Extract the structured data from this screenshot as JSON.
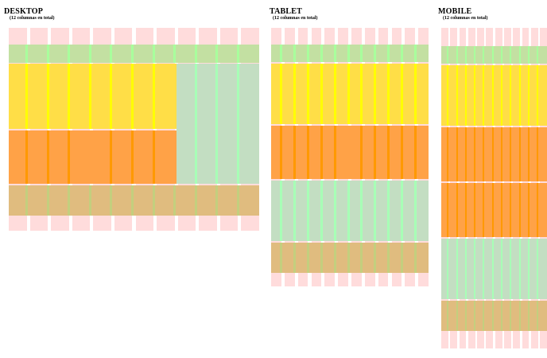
{
  "colors": {
    "column": "#ffdcdc",
    "header": "#c3e0a2",
    "hero": "#ffde47",
    "feature": "#ffa247",
    "sidebar": "#c3dec2",
    "footer": "#e0bc7f",
    "stripe_header": "#a8ff9c",
    "stripe_hero": "#ffff00",
    "stripe_feature": "#ff9900",
    "stripe_sidebar": "#a7ffb6",
    "stripe_footer": "#c3cf7e"
  },
  "layouts": [
    {
      "id": "desktop",
      "title": "DESKTOP",
      "subtitle": "(12 columnas en total)",
      "columns": 12,
      "blocks": [
        {
          "name": "header",
          "color": "header",
          "stripe": "stripe_header",
          "col_start": 1,
          "col_span": 12
        },
        {
          "name": "hero",
          "color": "hero",
          "stripe": "stripe_hero",
          "col_start": 1,
          "col_span": 8
        },
        {
          "name": "sidebar",
          "color": "sidebar",
          "stripe": "stripe_sidebar",
          "col_start": 9,
          "col_span": 4
        },
        {
          "name": "feature-1",
          "color": "feature",
          "stripe": "stripe_feature",
          "col_start": 1,
          "col_span": 4
        },
        {
          "name": "feature-2",
          "color": "feature",
          "stripe": "stripe_feature",
          "col_start": 5,
          "col_span": 4
        },
        {
          "name": "footer",
          "color": "footer",
          "stripe": "stripe_footer",
          "col_start": 1,
          "col_span": 12
        }
      ]
    },
    {
      "id": "tablet",
      "title": "TABLET",
      "subtitle": "(12 columnas en total)",
      "columns": 12,
      "blocks": [
        {
          "name": "header",
          "color": "header",
          "stripe": "stripe_header",
          "col_start": 1,
          "col_span": 12
        },
        {
          "name": "hero",
          "color": "hero",
          "stripe": "stripe_hero",
          "col_start": 1,
          "col_span": 12
        },
        {
          "name": "feature-1",
          "color": "feature",
          "stripe": "stripe_feature",
          "col_start": 1,
          "col_span": 6
        },
        {
          "name": "feature-2",
          "color": "feature",
          "stripe": "stripe_feature",
          "col_start": 7,
          "col_span": 6
        },
        {
          "name": "sidebar",
          "color": "sidebar",
          "stripe": "stripe_sidebar",
          "col_start": 1,
          "col_span": 12
        },
        {
          "name": "footer",
          "color": "footer",
          "stripe": "stripe_footer",
          "col_start": 1,
          "col_span": 12
        }
      ]
    },
    {
      "id": "mobile",
      "title": "MOBILE",
      "subtitle": "(12 columnas en total)",
      "columns": 12,
      "blocks": [
        {
          "name": "header",
          "color": "header",
          "stripe": "stripe_header",
          "col_start": 1,
          "col_span": 12
        },
        {
          "name": "hero",
          "color": "hero",
          "stripe": "stripe_hero",
          "col_start": 1,
          "col_span": 12
        },
        {
          "name": "feature-1",
          "color": "feature",
          "stripe": "stripe_feature",
          "col_start": 1,
          "col_span": 12
        },
        {
          "name": "feature-2",
          "color": "feature",
          "stripe": "stripe_feature",
          "col_start": 1,
          "col_span": 12
        },
        {
          "name": "sidebar",
          "color": "sidebar",
          "stripe": "stripe_sidebar",
          "col_start": 1,
          "col_span": 12
        },
        {
          "name": "footer",
          "color": "footer",
          "stripe": "stripe_footer",
          "col_start": 1,
          "col_span": 12
        }
      ]
    }
  ]
}
